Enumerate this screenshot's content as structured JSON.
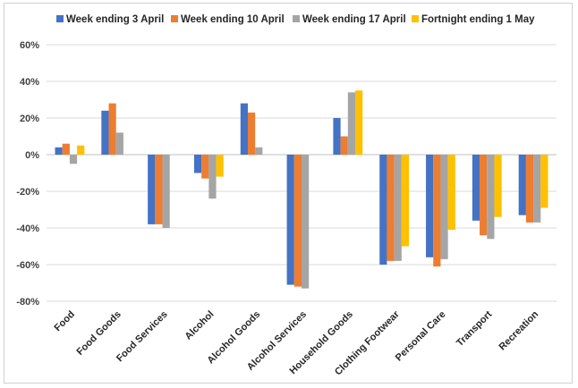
{
  "chart_data": {
    "type": "bar",
    "title": "",
    "xlabel": "",
    "ylabel": "",
    "ylim": [
      -80,
      60
    ],
    "yticks": [
      60,
      40,
      20,
      0,
      -20,
      -40,
      -60,
      -80
    ],
    "ytick_labels": [
      "60%",
      "40%",
      "20%",
      "0%",
      "-20%",
      "-40%",
      "-60%",
      "-80%"
    ],
    "grid": true,
    "legend_position": "top",
    "categories": [
      "Food",
      "Food Goods",
      "Food Services",
      "Alcohol",
      "Alcohol Goods",
      "Alcohol Services",
      "Household Goods",
      "Clothing Footwear",
      "Personal Care",
      "Transport",
      "Recreation"
    ],
    "series": [
      {
        "name": "Week ending 3 April",
        "color": "#4472c4",
        "values": [
          4,
          24,
          -38,
          -10,
          28,
          -71,
          20,
          -60,
          -56,
          -36,
          -33
        ]
      },
      {
        "name": "Week ending 10 April",
        "color": "#ed7d31",
        "values": [
          6,
          28,
          -38,
          -13,
          23,
          -72,
          10,
          -58,
          -61,
          -44,
          -37
        ]
      },
      {
        "name": "Week ending 17 April",
        "color": "#a5a5a5",
        "values": [
          -5,
          12,
          -40,
          -24,
          4,
          -73,
          34,
          -58,
          -57,
          -46,
          -37
        ]
      },
      {
        "name": "Fortnight ending 1 May",
        "color": "#ffc000",
        "values": [
          5,
          null,
          null,
          -12,
          null,
          null,
          35,
          -50,
          -41,
          -34,
          -29
        ]
      }
    ]
  }
}
